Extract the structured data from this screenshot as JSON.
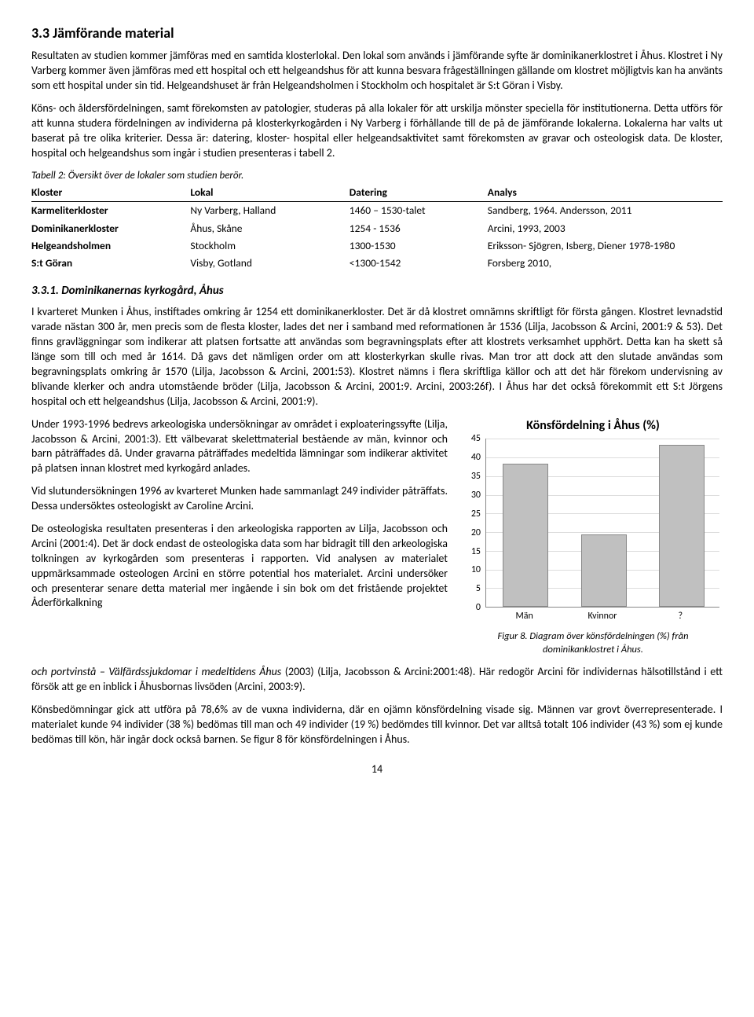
{
  "section33": {
    "heading": "3.3 Jämförande material",
    "p1": "Resultaten av studien kommer jämföras med en samtida klosterlokal. Den lokal som används i jämförande syfte är dominikanerklostret i Åhus. Klostret i Ny Varberg kommer även jämföras med ett hospital och ett helgeandshus för att kunna besvara frågeställningen gällande om klostret möjligtvis kan ha använts som ett hospital under sin tid. Helgeandshuset är från Helgeandsholmen i Stockholm och hospitalet är S:t Göran i Visby.",
    "p2": "Köns- och åldersfördelningen, samt förekomsten av patologier, studeras på alla lokaler för att urskilja mönster speciella för institutionerna. Detta utförs för att kunna studera fördelningen av individerna på klosterkyrkogården i Ny Varberg i förhållande till de på de jämförande lokalerna. Lokalerna har valts ut baserat på tre olika kriterier. Dessa är: datering, kloster- hospital eller helgeandsaktivitet samt förekomsten av gravar och osteologisk data. De kloster, hospital och helgeandshus som ingår i studien presenteras i tabell 2."
  },
  "table2": {
    "caption": "Tabell 2: Översikt över de lokaler som studien berör.",
    "headers": [
      "Kloster",
      "Lokal",
      "Datering",
      "Analys"
    ],
    "rows": [
      [
        "Karmeliterkloster",
        "Ny Varberg, Halland",
        "1460 – 1530-talet",
        "Sandberg, 1964. Andersson, 2011"
      ],
      [
        "Dominikanerkloster",
        "Åhus, Skåne",
        "1254 - 1536",
        "Arcini, 1993, 2003"
      ],
      [
        "Helgeandsholmen",
        "Stockholm",
        "1300-1530",
        "Eriksson- Sjögren, Isberg, Diener 1978-1980"
      ],
      [
        "S:t Göran",
        "Visby, Gotland",
        "<1300-1542",
        "Forsberg 2010,"
      ]
    ]
  },
  "section331": {
    "heading": "3.3.1. Dominikanernas kyrkogård, Åhus",
    "p1": "I kvarteret Munken i Åhus, instiftades omkring år 1254 ett dominikanerkloster. Det är då klostret omnämns skriftligt för första gången. Klostret levnadstid varade nästan 300 år, men precis som de flesta kloster, lades det ner i samband med reformationen år 1536 (Lilja, Jacobsson & Arcini, 2001:9 & 53). Det finns gravläggningar som indikerar att platsen fortsatte att användas som begravningsplats efter att klostrets verksamhet upphört. Detta kan ha skett så länge som till och med år 1614. Då gavs det nämligen order om att klosterkyrkan skulle rivas. Man tror att dock att den slutade användas som begravningsplats omkring år 1570 (Lilja, Jacobsson & Arcini, 2001:53). Klostret nämns i flera skriftliga källor och att det här förekom undervisning av blivande klerker och andra utomstående bröder (Lilja, Jacobsson & Arcini, 2001:9. Arcini, 2003:26f). I Åhus har det också förekommit ett S:t Jörgens hospital och ett helgeandshus (Lilja, Jacobsson & Arcini, 2001:9).",
    "p2a": "Under 1993-1996 bedrevs arkeologiska undersökningar av området i exploateringssyfte (Lilja, Jacobsson & Arcini, 2001:3). Ett välbevarat skelettmaterial bestående av män, kvinnor och barn påträffades då. Under gravarna påträffades medeltida lämningar som indikerar aktivitet på platsen innan klostret med kyrkogård anlades.",
    "p2b": "Vid slutundersökningen 1996 av kvarteret Munken hade sammanlagt 249 individer påträffats. Dessa undersöktes osteologiskt av Caroline Arcini.",
    "p2c": "De osteologiska resultaten presenteras i den arkeologiska rapporten av Lilja, Jacobsson och Arcini (2001:4). Det är dock endast de osteologiska data som har bidragit till den arkeologiska tolkningen av kyrkogården som presenteras i rapporten. Vid analysen av materialet uppmärksammade osteologen Arcini en större potential hos materialet. Arcini undersöker och presenterar senare detta material mer ingående i sin bok om det fristående projektet Åderförkalkning",
    "p3": "och portvinstå – Välfärdssjukdomar i medeltidens Åhus (2003) (Lilja, Jacobsson & Arcini:2001:48). Här redogör Arcini för individernas hälsotillstånd i ett försök att ge en inblick i Åhusbornas livsöden (Arcini, 2003:9).",
    "p4": "Könsbedömningar gick att utföra på 78,6% av de vuxna individerna, där en ojämn könsfördelning visade sig. Männen var grovt överrepresenterade. I materialet kunde 94 individer (38 %) bedömas till man och 49 individer (19 %) bedömdes till kvinnor. Det var alltså totalt 106 individer (43 %) som ej kunde bedömas till kön, här ingår dock också barnen. Se figur 8 för könsfördelningen i Åhus."
  },
  "chart": {
    "title": "Könsfördelning i Åhus (%)",
    "categories": [
      "Män",
      "Kvinnor",
      "?"
    ],
    "values": [
      38,
      19,
      43
    ],
    "ylim": [
      0,
      45
    ],
    "ytick_step": 5,
    "bar_color": "#c0c0c0",
    "border_color": "#888888",
    "grid_color": "#dddddd",
    "background_color": "#ffffff",
    "font_size": 12
  },
  "figure8": {
    "caption": "Figur 8. Diagram över könsfördelningen (%) från dominikanklostret i Åhus."
  },
  "page": "14"
}
